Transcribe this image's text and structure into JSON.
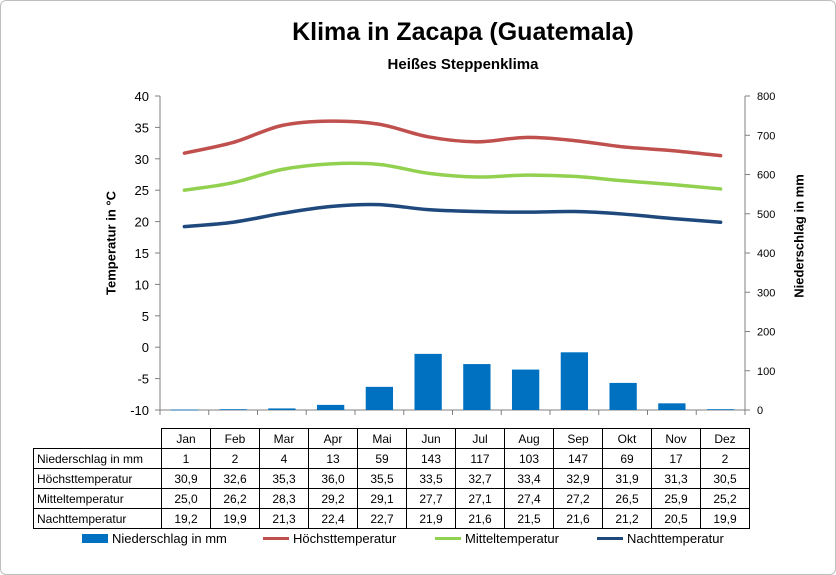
{
  "title": "Klima in Zacapa (Guatemala)",
  "subtitle": "Heißes Steppenklima",
  "chart_data": {
    "type": "bar",
    "categories": [
      "Jan",
      "Feb",
      "Mar",
      "Apr",
      "Mai",
      "Jun",
      "Jul",
      "Aug",
      "Sep",
      "Okt",
      "Nov",
      "Dez"
    ],
    "y_left": {
      "label": "Temperatur in °C",
      "range": [
        -10,
        40
      ],
      "ticks": [
        40,
        35,
        30,
        25,
        20,
        15,
        10,
        5,
        0,
        -5,
        -10
      ]
    },
    "y_right": {
      "label": "Niederschlag in mm",
      "range": [
        0,
        800
      ],
      "ticks": [
        800,
        700,
        600,
        500,
        400,
        300,
        200,
        100,
        0
      ]
    },
    "grid": false,
    "legend_position": "bottom",
    "series": [
      {
        "name": "Niederschlag in mm",
        "type": "bar",
        "axis": "right",
        "color": "#0070c0",
        "values": [
          1,
          2,
          4,
          13,
          59,
          143,
          117,
          103,
          147,
          69,
          17,
          2
        ]
      },
      {
        "name": "Höchsttemperatur",
        "type": "line",
        "axis": "left",
        "color": "#c0504d",
        "values": [
          30.9,
          32.6,
          35.3,
          36.0,
          35.5,
          33.5,
          32.7,
          33.4,
          32.9,
          31.9,
          31.3,
          30.5
        ]
      },
      {
        "name": "Mitteltemperatur",
        "type": "line",
        "axis": "left",
        "color": "#92d050",
        "values": [
          25.0,
          26.2,
          28.3,
          29.2,
          29.1,
          27.7,
          27.1,
          27.4,
          27.2,
          26.5,
          25.9,
          25.2
        ]
      },
      {
        "name": "Nachttemperatur",
        "type": "line",
        "axis": "left",
        "color": "#1f497d",
        "values": [
          19.2,
          19.9,
          21.3,
          22.4,
          22.7,
          21.9,
          21.6,
          21.5,
          21.6,
          21.2,
          20.5,
          19.9
        ]
      }
    ]
  },
  "table": {
    "rows": [
      {
        "label": "Niederschlag in mm",
        "cells": [
          "1",
          "2",
          "4",
          "13",
          "59",
          "143",
          "117",
          "103",
          "147",
          "69",
          "17",
          "2"
        ]
      },
      {
        "label": "Höchsttemperatur",
        "cells": [
          "30,9",
          "32,6",
          "35,3",
          "36,0",
          "35,5",
          "33,5",
          "32,7",
          "33,4",
          "32,9",
          "31,9",
          "31,3",
          "30,5"
        ]
      },
      {
        "label": "Mitteltemperatur",
        "cells": [
          "25,0",
          "26,2",
          "28,3",
          "29,2",
          "29,1",
          "27,7",
          "27,1",
          "27,4",
          "27,2",
          "26,5",
          "25,9",
          "25,2"
        ]
      },
      {
        "label": "Nachttemperatur",
        "cells": [
          "19,2",
          "19,9",
          "21,3",
          "22,4",
          "22,7",
          "21,9",
          "21,6",
          "21,5",
          "21,6",
          "21,2",
          "20,5",
          "19,9"
        ]
      }
    ]
  },
  "legend": [
    {
      "label": "Niederschlag in mm",
      "kind": "bar",
      "color": "#0070c0"
    },
    {
      "label": "Höchsttemperatur",
      "kind": "line",
      "color": "#c0504d"
    },
    {
      "label": "Mitteltemperatur",
      "kind": "line",
      "color": "#92d050"
    },
    {
      "label": "Nachttemperatur",
      "kind": "line",
      "color": "#1f497d"
    }
  ]
}
